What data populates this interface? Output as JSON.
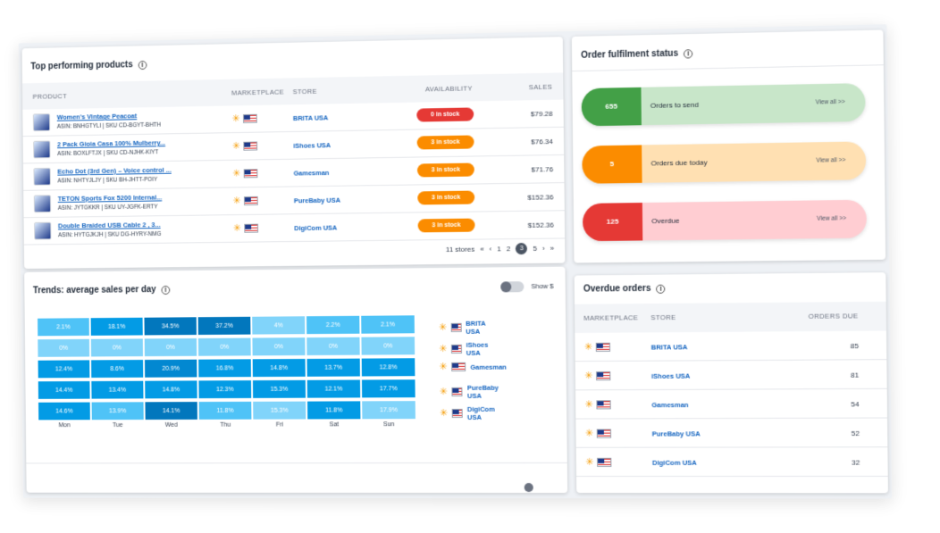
{
  "top_products": {
    "title": "Top performing products",
    "columns": [
      "PRODUCT",
      "MARKETPLACE",
      "STORE",
      "AVAILABILITY",
      "SALES"
    ],
    "rows": [
      {
        "name": "Women's Vintage Peacoat",
        "asin": "ASIN: BNHGTYLI",
        "sku": "SKU CD-BGYT-BHTH",
        "store": "BRITA USA",
        "availability": "0 in stock",
        "status_color": "#e53935",
        "sales": "$79.28"
      },
      {
        "name": "2 Pack Gioia Casa 100% Mulberry...",
        "asin": "ASIN: BOXLFTJX",
        "sku": "SKU CD-NJHK-KIYT",
        "store": "iShoes USA",
        "availability": "3 in stock",
        "status_color": "#fb8c00",
        "sales": "$76.34"
      },
      {
        "name": "Echo Dot (3rd Gen) – Voice control ...",
        "asin": "ASIN: NHTYJLJY",
        "sku": "SKU BH-JHTT-POIY",
        "store": "Gamesman",
        "availability": "3 in stock",
        "status_color": "#fb8c00",
        "sales": "$71.76"
      },
      {
        "name": "TETON Sports Fox 5200 Internal...",
        "asin": "ASIN: JYTGKKR",
        "sku": "SKU UY-JGFK-ERTY",
        "store": "PureBaby USA",
        "availability": "3 in stock",
        "status_color": "#fb8c00",
        "sales": "$152.36"
      },
      {
        "name": "Double Braided USB Cable 2 , 3...",
        "asin": "ASIN: HYTGJKJH",
        "sku": "SKU DG-HYRY-NMG",
        "store": "DigiCom USA",
        "availability": "3 in stock",
        "status_color": "#fb8c00",
        "sales": "$152.36"
      }
    ],
    "pager": {
      "count": "11 stores",
      "first": "«",
      "prev": "‹",
      "pages": [
        "1",
        "2",
        "3",
        "5"
      ],
      "current": "3",
      "next": "›",
      "last": "»"
    }
  },
  "fulfilment": {
    "title": "Order fulfilment status",
    "items": [
      {
        "count": "655",
        "label": "Orders to send",
        "link": "View all >>",
        "dark": "#43a047",
        "light": "#c8e6c9"
      },
      {
        "count": "5",
        "label": "Orders due today",
        "link": "View all >>",
        "dark": "#fb8c00",
        "light": "#ffe0b2"
      },
      {
        "count": "125",
        "label": "Overdue",
        "link": "View all >>",
        "dark": "#e53935",
        "light": "#ffcdd2"
      }
    ]
  },
  "trends": {
    "title": "Trends: average sales per day",
    "toggle_label": "Show $",
    "days": [
      "Mon",
      "Tue",
      "Wed",
      "Thu",
      "Fri",
      "Sat",
      "Sun"
    ],
    "stores": [
      "BRITA USA",
      "iShoes USA",
      "Gamesman",
      "PureBaby USA",
      "DigiCom USA"
    ],
    "matrix": [
      [
        "2.1%",
        "18.1%",
        "34.5%",
        "37.2%",
        "4%",
        "2.2%",
        "2.1%"
      ],
      [
        "0%",
        "0%",
        "0%",
        "0%",
        "0%",
        "0%",
        "0%"
      ],
      [
        "12.4%",
        "8.6%",
        "20.9%",
        "16.8%",
        "14.8%",
        "13.7%",
        "12.8%"
      ],
      [
        "14.4%",
        "13.4%",
        "14.8%",
        "12.3%",
        "15.3%",
        "12.1%",
        "17.7%"
      ],
      [
        "14.6%",
        "13.9%",
        "14.1%",
        "11.8%",
        "15.3%",
        "11.8%",
        "17.9%"
      ]
    ],
    "colors": [
      [
        "#4fc3f7",
        "#039be5",
        "#0277bd",
        "#0277bd",
        "#81d4fa",
        "#4fc3f7",
        "#4fc3f7"
      ],
      [
        "#81d4fa",
        "#81d4fa",
        "#81d4fa",
        "#81d4fa",
        "#81d4fa",
        "#81d4fa",
        "#81d4fa"
      ],
      [
        "#039be5",
        "#039be5",
        "#0288d1",
        "#039be5",
        "#039be5",
        "#039be5",
        "#039be5"
      ],
      [
        "#039be5",
        "#039be5",
        "#039be5",
        "#039be5",
        "#039be5",
        "#039be5",
        "#039be5"
      ],
      [
        "#039be5",
        "#4fc3f7",
        "#0277bd",
        "#4fc3f7",
        "#81d4fa",
        "#039be5",
        "#81d4fa"
      ]
    ]
  },
  "overdue": {
    "title": "Overdue orders",
    "columns": [
      "MARKETPLACE",
      "STORE",
      "ORDERS DUE"
    ],
    "rows": [
      {
        "store": "BRITA USA",
        "due": "85"
      },
      {
        "store": "iShoes USA",
        "due": "81"
      },
      {
        "store": "Gamesman",
        "due": "54"
      },
      {
        "store": "PureBaby USA",
        "due": "52"
      },
      {
        "store": "DigiCom USA",
        "due": "32"
      }
    ]
  },
  "icons": {
    "info": "info-icon",
    "marketplace": "walmart-spark-icon",
    "flag": "us-flag-icon"
  }
}
